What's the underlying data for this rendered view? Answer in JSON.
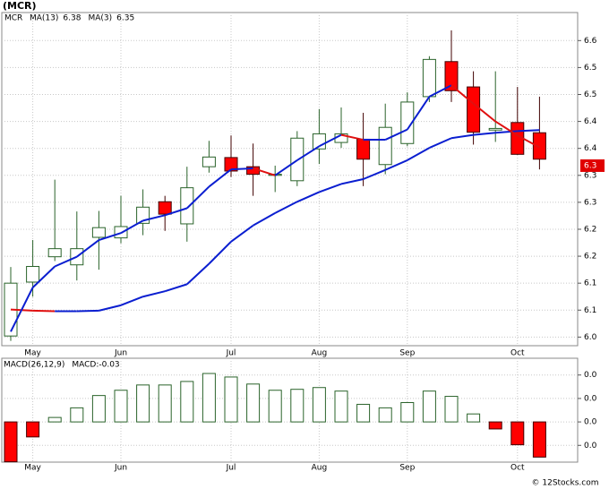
{
  "chart_data": [
    {
      "type": "candlestick",
      "title": "(MCR)",
      "name": "MCR",
      "name_color": "#1f8a1f",
      "categories": [
        null,
        "May",
        null,
        null,
        null,
        "Jun",
        null,
        null,
        null,
        null,
        "Jul",
        null,
        null,
        null,
        "Aug",
        null,
        null,
        null,
        "Sep",
        null,
        null,
        null,
        null,
        "Oct",
        null
      ],
      "open": [
        6.002,
        6.102,
        6.149,
        6.134,
        6.185,
        6.184,
        6.211,
        6.251,
        6.21,
        6.316,
        6.333,
        6.316,
        6.3,
        6.29,
        6.349,
        6.361,
        6.367,
        6.32,
        6.359,
        6.446,
        6.511,
        6.464,
        6.384,
        6.398,
        6.379
      ],
      "high": [
        6.13,
        6.18,
        6.292,
        6.233,
        6.234,
        6.262,
        6.274,
        6.262,
        6.316,
        6.364,
        6.374,
        6.359,
        6.318,
        6.382,
        6.423,
        6.426,
        6.416,
        6.433,
        6.454,
        6.521,
        6.569,
        6.493,
        6.493,
        6.464,
        6.446
      ],
      "low": [
        5.993,
        6.075,
        6.141,
        6.105,
        6.125,
        6.174,
        6.189,
        6.197,
        6.177,
        6.305,
        6.297,
        6.262,
        6.269,
        6.28,
        6.321,
        6.351,
        6.28,
        6.302,
        6.354,
        6.436,
        6.436,
        6.357,
        6.362,
        6.338,
        6.311
      ],
      "close": [
        6.1,
        6.131,
        6.164,
        6.164,
        6.203,
        6.205,
        6.241,
        6.228,
        6.277,
        6.334,
        6.308,
        6.302,
        6.302,
        6.369,
        6.377,
        6.377,
        6.33,
        6.389,
        6.436,
        6.515,
        6.457,
        6.38,
        6.387,
        6.339,
        6.33
      ],
      "up_color": "#2a632a",
      "down_color": "#ff0000",
      "series": [
        {
          "name": "MA(13)",
          "value_label": "6.38",
          "color": "#0a1ed0",
          "down_color": "#e01010",
          "values": [
            6.051,
            6.049,
            6.048,
            6.048,
            6.049,
            6.059,
            6.075,
            6.085,
            6.098,
            6.136,
            6.177,
            6.207,
            6.23,
            6.251,
            6.269,
            6.284,
            6.293,
            6.31,
            6.328,
            6.351,
            6.369,
            6.375,
            6.379,
            6.382,
            6.384
          ]
        },
        {
          "name": "MA(3)",
          "value_label": "6.35",
          "color": "#0a1ed0",
          "down_color": "#e01010",
          "values": [
            6.01,
            6.092,
            6.131,
            6.149,
            6.18,
            6.193,
            6.216,
            6.226,
            6.239,
            6.279,
            6.311,
            6.313,
            6.3,
            6.328,
            6.354,
            6.375,
            6.366,
            6.366,
            6.385,
            6.446,
            6.467,
            6.433,
            6.4,
            6.374,
            6.352
          ]
        }
      ],
      "ylim": [
        5.984,
        6.602
      ],
      "yticks": [
        {
          "value": 6.0,
          "label": "6.0"
        },
        {
          "value": 6.05,
          "label": "6.1"
        },
        {
          "value": 6.1,
          "label": "6.1"
        },
        {
          "value": 6.15,
          "label": "6.2"
        },
        {
          "value": 6.2,
          "label": "6.2"
        },
        {
          "value": 6.25,
          "label": "6.3"
        },
        {
          "value": 6.3,
          "label": "6.3"
        },
        {
          "value": 6.35,
          "label": "6.4"
        },
        {
          "value": 6.4,
          "label": "6.4"
        },
        {
          "value": 6.45,
          "label": "6.5"
        },
        {
          "value": 6.5,
          "label": "6.5"
        },
        {
          "value": 6.55,
          "label": "6.6"
        }
      ],
      "last_price": {
        "value": 6.318,
        "label": "6.3"
      },
      "grid": true
    },
    {
      "type": "bar",
      "title": "MACD(26,12,9)",
      "categories": [
        null,
        "May",
        null,
        null,
        null,
        "Jun",
        null,
        null,
        null,
        null,
        "Jul",
        null,
        null,
        null,
        "Aug",
        null,
        null,
        null,
        "Sep",
        null,
        null,
        null,
        null,
        "Oct",
        null
      ],
      "series": [
        {
          "name": "MACD:",
          "value_label": "-0.03",
          "color": "#2a632a",
          "negative_color": "#ff0000",
          "values": [
            -0.034,
            -0.0128,
            0.0038,
            0.012,
            0.0225,
            0.027,
            0.0315,
            0.0315,
            0.0345,
            0.0413,
            0.0383,
            0.0323,
            0.027,
            0.0278,
            0.0293,
            0.0263,
            0.015,
            0.012,
            0.0165,
            0.0263,
            0.0218,
            0.0068,
            -0.006,
            -0.0195,
            -0.03
          ]
        }
      ],
      "ylim": [
        -0.0343,
        0.0543
      ],
      "yticks": [
        {
          "value": 0.04,
          "label": "0.0"
        },
        {
          "value": 0.02,
          "label": "0.0"
        },
        {
          "value": 0.0,
          "label": "0.0"
        },
        {
          "value": -0.02,
          "label": "0.0"
        }
      ],
      "grid": true
    }
  ],
  "footer": "© 12Stocks.com"
}
